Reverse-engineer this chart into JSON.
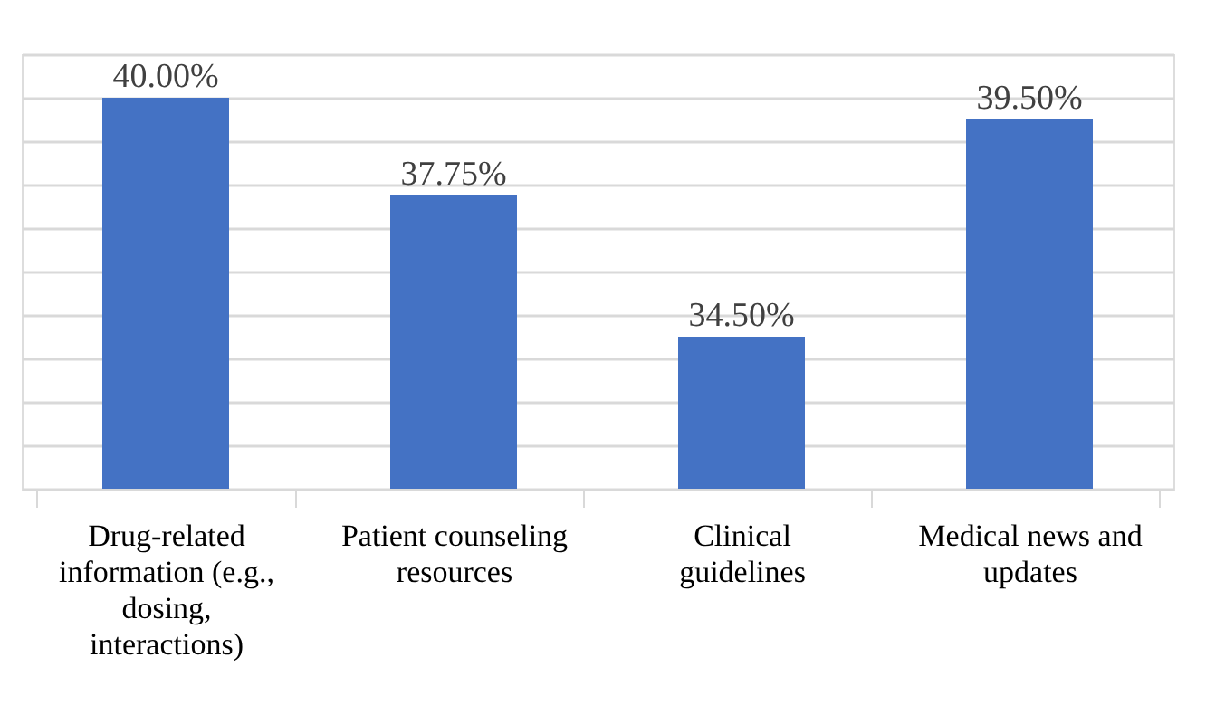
{
  "chart_data": {
    "type": "bar",
    "categories": [
      "Drug-related information (e.g., dosing, interactions)",
      "Patient counseling resources",
      "Clinical guidelines",
      "Medical news and updates"
    ],
    "values": [
      40.0,
      37.75,
      34.5,
      39.5
    ],
    "value_labels": [
      "40.00%",
      "37.75%",
      "34.50%",
      "39.50%"
    ],
    "color": "#4472c4",
    "ylim": [
      31,
      41
    ],
    "yticks": [
      {
        "value": 31,
        "label": null
      },
      {
        "value": 32,
        "label": null
      },
      {
        "value": 33,
        "label": null
      },
      {
        "value": 34,
        "label": null
      },
      {
        "value": 35,
        "label": null
      },
      {
        "value": 36,
        "label": null
      },
      {
        "value": 37,
        "label": null
      },
      {
        "value": 38,
        "label": null
      },
      {
        "value": 39,
        "label": null
      },
      {
        "value": 40,
        "label": null
      },
      {
        "value": 41,
        "label": null
      }
    ],
    "grid": "y",
    "tick_labels": "x"
  }
}
